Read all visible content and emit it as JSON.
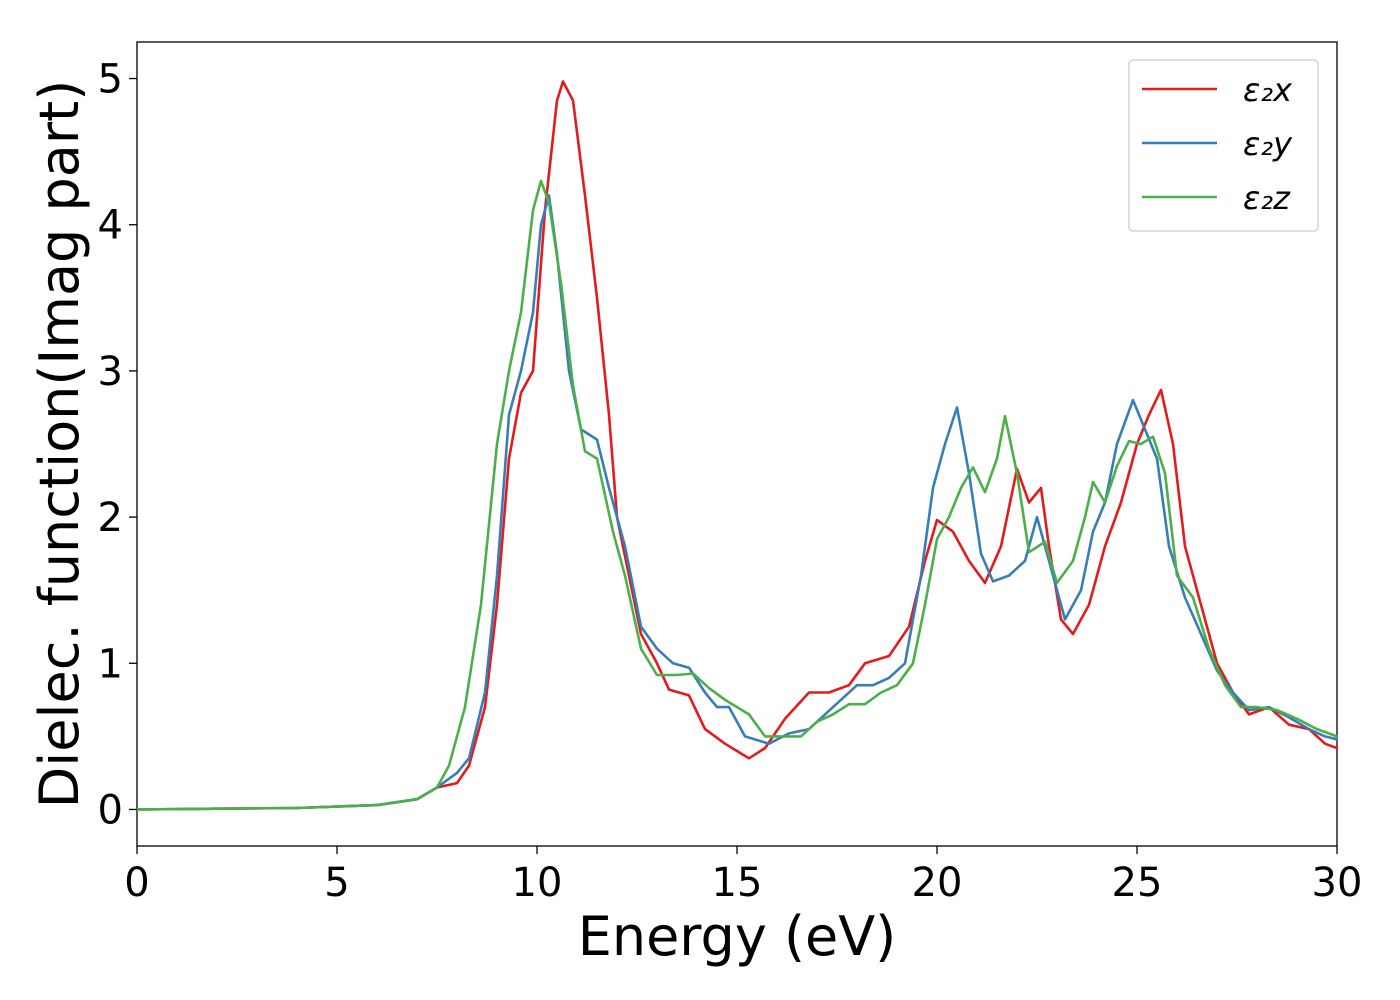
{
  "chart_data": {
    "type": "line",
    "xlabel": "Energy (eV)",
    "ylabel": "Dielec. function(Imag part)",
    "xlim": [
      0,
      30
    ],
    "ylim": [
      -0.25,
      5.25
    ],
    "x_ticks": [
      0,
      5,
      10,
      15,
      20,
      25,
      30
    ],
    "y_ticks": [
      0,
      1,
      2,
      3,
      4,
      5
    ],
    "grid": false,
    "legend_position": "top-right",
    "legend": {
      "series_0": "ε₂x",
      "series_1": "ε₂y",
      "series_2": "ε₂z"
    },
    "series": [
      {
        "name": "ε₂x",
        "color": "#e41a1c",
        "points": [
          [
            0,
            0
          ],
          [
            2,
            0.005
          ],
          [
            4,
            0.01
          ],
          [
            6,
            0.03
          ],
          [
            7,
            0.07
          ],
          [
            7.5,
            0.15
          ],
          [
            8,
            0.18
          ],
          [
            8.3,
            0.3
          ],
          [
            8.7,
            0.7
          ],
          [
            9,
            1.4
          ],
          [
            9.3,
            2.4
          ],
          [
            9.6,
            2.85
          ],
          [
            9.9,
            3.0
          ],
          [
            10.2,
            4.1
          ],
          [
            10.5,
            4.85
          ],
          [
            10.65,
            4.98
          ],
          [
            10.9,
            4.85
          ],
          [
            11.2,
            4.2
          ],
          [
            11.5,
            3.5
          ],
          [
            11.8,
            2.7
          ],
          [
            12.0,
            2.0
          ],
          [
            12.3,
            1.6
          ],
          [
            12.6,
            1.2
          ],
          [
            13.0,
            1.0
          ],
          [
            13.3,
            0.82
          ],
          [
            13.8,
            0.78
          ],
          [
            14.2,
            0.55
          ],
          [
            14.7,
            0.45
          ],
          [
            15.0,
            0.4
          ],
          [
            15.3,
            0.35
          ],
          [
            15.7,
            0.42
          ],
          [
            16.2,
            0.62
          ],
          [
            16.8,
            0.8
          ],
          [
            17.3,
            0.8
          ],
          [
            17.8,
            0.85
          ],
          [
            18.2,
            1.0
          ],
          [
            18.8,
            1.05
          ],
          [
            19.3,
            1.25
          ],
          [
            19.7,
            1.7
          ],
          [
            20.0,
            1.98
          ],
          [
            20.4,
            1.9
          ],
          [
            20.8,
            1.7
          ],
          [
            21.2,
            1.55
          ],
          [
            21.6,
            1.8
          ],
          [
            22.0,
            2.33
          ],
          [
            22.3,
            2.1
          ],
          [
            22.6,
            2.2
          ],
          [
            22.8,
            1.8
          ],
          [
            23.1,
            1.3
          ],
          [
            23.4,
            1.2
          ],
          [
            23.8,
            1.4
          ],
          [
            24.2,
            1.8
          ],
          [
            24.6,
            2.1
          ],
          [
            25.0,
            2.5
          ],
          [
            25.3,
            2.7
          ],
          [
            25.6,
            2.87
          ],
          [
            25.9,
            2.5
          ],
          [
            26.2,
            1.8
          ],
          [
            26.6,
            1.4
          ],
          [
            27.0,
            1.0
          ],
          [
            27.4,
            0.8
          ],
          [
            27.8,
            0.65
          ],
          [
            28.3,
            0.7
          ],
          [
            28.8,
            0.58
          ],
          [
            29.3,
            0.55
          ],
          [
            29.7,
            0.45
          ],
          [
            30,
            0.42
          ]
        ]
      },
      {
        "name": "ε₂y",
        "color": "#377eb8",
        "points": [
          [
            0,
            0
          ],
          [
            2,
            0.005
          ],
          [
            4,
            0.01
          ],
          [
            6,
            0.03
          ],
          [
            7,
            0.07
          ],
          [
            7.5,
            0.15
          ],
          [
            8,
            0.25
          ],
          [
            8.3,
            0.35
          ],
          [
            8.7,
            0.8
          ],
          [
            9,
            1.6
          ],
          [
            9.3,
            2.7
          ],
          [
            9.6,
            3.0
          ],
          [
            9.9,
            3.4
          ],
          [
            10.1,
            4.0
          ],
          [
            10.3,
            4.2
          ],
          [
            10.5,
            3.8
          ],
          [
            10.8,
            3.0
          ],
          [
            11.1,
            2.6
          ],
          [
            11.5,
            2.53
          ],
          [
            11.8,
            2.2
          ],
          [
            12.2,
            1.8
          ],
          [
            12.6,
            1.25
          ],
          [
            13.0,
            1.1
          ],
          [
            13.4,
            1.0
          ],
          [
            13.8,
            0.97
          ],
          [
            14.2,
            0.8
          ],
          [
            14.5,
            0.7
          ],
          [
            14.8,
            0.7
          ],
          [
            15.2,
            0.5
          ],
          [
            15.8,
            0.45
          ],
          [
            16.3,
            0.52
          ],
          [
            16.8,
            0.55
          ],
          [
            17.2,
            0.65
          ],
          [
            17.6,
            0.75
          ],
          [
            18.0,
            0.85
          ],
          [
            18.4,
            0.85
          ],
          [
            18.8,
            0.9
          ],
          [
            19.2,
            1.0
          ],
          [
            19.6,
            1.6
          ],
          [
            19.9,
            2.2
          ],
          [
            20.2,
            2.5
          ],
          [
            20.5,
            2.75
          ],
          [
            20.8,
            2.3
          ],
          [
            21.1,
            1.75
          ],
          [
            21.4,
            1.56
          ],
          [
            21.8,
            1.6
          ],
          [
            22.2,
            1.7
          ],
          [
            22.5,
            2.0
          ],
          [
            22.8,
            1.7
          ],
          [
            23.2,
            1.3
          ],
          [
            23.6,
            1.5
          ],
          [
            23.9,
            1.9
          ],
          [
            24.2,
            2.1
          ],
          [
            24.5,
            2.5
          ],
          [
            24.9,
            2.8
          ],
          [
            25.2,
            2.6
          ],
          [
            25.5,
            2.4
          ],
          [
            25.8,
            1.8
          ],
          [
            26.2,
            1.45
          ],
          [
            26.6,
            1.2
          ],
          [
            27.0,
            0.95
          ],
          [
            27.4,
            0.8
          ],
          [
            27.8,
            0.68
          ],
          [
            28.3,
            0.7
          ],
          [
            28.8,
            0.63
          ],
          [
            29.3,
            0.55
          ],
          [
            29.7,
            0.5
          ],
          [
            30,
            0.48
          ]
        ]
      },
      {
        "name": "ε₂z",
        "color": "#4daf4a",
        "points": [
          [
            0,
            0
          ],
          [
            2,
            0.005
          ],
          [
            4,
            0.01
          ],
          [
            6,
            0.03
          ],
          [
            7,
            0.07
          ],
          [
            7.5,
            0.15
          ],
          [
            7.8,
            0.3
          ],
          [
            8.2,
            0.7
          ],
          [
            8.6,
            1.4
          ],
          [
            9.0,
            2.5
          ],
          [
            9.3,
            3.0
          ],
          [
            9.6,
            3.4
          ],
          [
            9.9,
            4.1
          ],
          [
            10.1,
            4.3
          ],
          [
            10.3,
            4.15
          ],
          [
            10.6,
            3.6
          ],
          [
            10.9,
            2.9
          ],
          [
            11.2,
            2.45
          ],
          [
            11.5,
            2.4
          ],
          [
            11.9,
            1.9
          ],
          [
            12.2,
            1.6
          ],
          [
            12.6,
            1.1
          ],
          [
            13.0,
            0.92
          ],
          [
            13.5,
            0.92
          ],
          [
            13.9,
            0.93
          ],
          [
            14.3,
            0.83
          ],
          [
            14.7,
            0.75
          ],
          [
            15.0,
            0.7
          ],
          [
            15.3,
            0.65
          ],
          [
            15.7,
            0.5
          ],
          [
            16.2,
            0.5
          ],
          [
            16.6,
            0.5
          ],
          [
            17.0,
            0.6
          ],
          [
            17.4,
            0.65
          ],
          [
            17.8,
            0.72
          ],
          [
            18.2,
            0.72
          ],
          [
            18.6,
            0.8
          ],
          [
            19.0,
            0.85
          ],
          [
            19.4,
            1.0
          ],
          [
            19.7,
            1.4
          ],
          [
            20.0,
            1.85
          ],
          [
            20.3,
            2.0
          ],
          [
            20.6,
            2.2
          ],
          [
            20.9,
            2.34
          ],
          [
            21.2,
            2.17
          ],
          [
            21.5,
            2.4
          ],
          [
            21.7,
            2.69
          ],
          [
            22.0,
            2.3
          ],
          [
            22.3,
            1.76
          ],
          [
            22.7,
            1.83
          ],
          [
            23.0,
            1.55
          ],
          [
            23.4,
            1.7
          ],
          [
            23.7,
            2.0
          ],
          [
            23.9,
            2.24
          ],
          [
            24.2,
            2.1
          ],
          [
            24.5,
            2.35
          ],
          [
            24.8,
            2.52
          ],
          [
            25.1,
            2.5
          ],
          [
            25.4,
            2.55
          ],
          [
            25.7,
            2.3
          ],
          [
            26.0,
            1.6
          ],
          [
            26.4,
            1.45
          ],
          [
            26.8,
            1.1
          ],
          [
            27.2,
            0.85
          ],
          [
            27.6,
            0.7
          ],
          [
            28.0,
            0.7
          ],
          [
            28.5,
            0.68
          ],
          [
            29.0,
            0.62
          ],
          [
            29.5,
            0.55
          ],
          [
            30,
            0.5
          ]
        ]
      }
    ]
  }
}
